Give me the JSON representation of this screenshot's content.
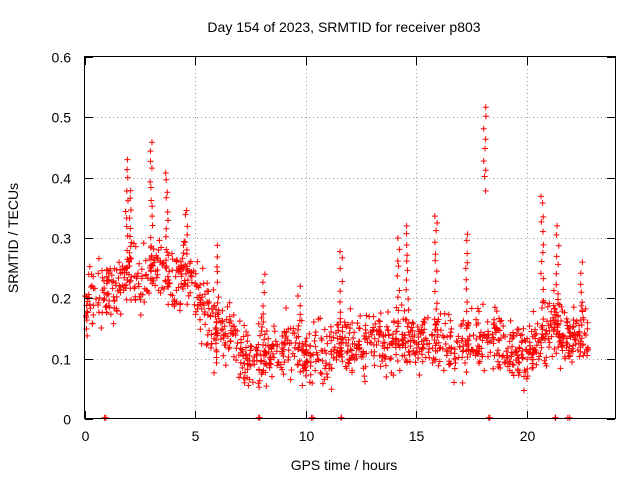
{
  "chart_data": {
    "type": "scatter",
    "title": "Day 154 of 2023, SRMTID for receiver p803",
    "xlabel": "GPS time / hours",
    "ylabel": "SRMTID / TECUs",
    "xlim": [
      0,
      24
    ],
    "ylim": [
      0,
      0.6
    ],
    "x_ticks": [
      0,
      5,
      10,
      15,
      20
    ],
    "x_tick_labels": [
      "0",
      "5",
      "10",
      "15",
      "20"
    ],
    "y_ticks": [
      0,
      0.1,
      0.2,
      0.3,
      0.4,
      0.5,
      0.6
    ],
    "y_tick_labels": [
      "0",
      "0.1",
      "0.2",
      "0.3",
      "0.4",
      "0.5",
      "0.6"
    ],
    "grid": true,
    "marker": "+",
    "color": "#ff0000",
    "trend": [
      [
        0.0,
        0.19
      ],
      [
        0.5,
        0.2
      ],
      [
        1.0,
        0.21
      ],
      [
        1.5,
        0.22
      ],
      [
        2.0,
        0.25
      ],
      [
        2.5,
        0.22
      ],
      [
        3.0,
        0.25
      ],
      [
        3.5,
        0.24
      ],
      [
        4.0,
        0.22
      ],
      [
        4.5,
        0.24
      ],
      [
        5.0,
        0.22
      ],
      [
        5.5,
        0.17
      ],
      [
        6.0,
        0.15
      ],
      [
        6.5,
        0.14
      ],
      [
        7.0,
        0.12
      ],
      [
        7.5,
        0.1
      ],
      [
        8.0,
        0.1
      ],
      [
        8.5,
        0.11
      ],
      [
        9.0,
        0.12
      ],
      [
        9.5,
        0.12
      ],
      [
        10.0,
        0.1
      ],
      [
        10.5,
        0.11
      ],
      [
        11.0,
        0.1
      ],
      [
        11.5,
        0.13
      ],
      [
        12.0,
        0.12
      ],
      [
        12.5,
        0.12
      ],
      [
        13.0,
        0.13
      ],
      [
        13.5,
        0.12
      ],
      [
        14.0,
        0.13
      ],
      [
        14.5,
        0.14
      ],
      [
        15.0,
        0.12
      ],
      [
        15.5,
        0.13
      ],
      [
        16.0,
        0.13
      ],
      [
        16.5,
        0.12
      ],
      [
        17.0,
        0.12
      ],
      [
        17.5,
        0.14
      ],
      [
        18.0,
        0.13
      ],
      [
        18.5,
        0.14
      ],
      [
        19.0,
        0.12
      ],
      [
        19.5,
        0.11
      ],
      [
        20.0,
        0.11
      ],
      [
        20.5,
        0.13
      ],
      [
        21.0,
        0.16
      ],
      [
        21.5,
        0.15
      ],
      [
        22.0,
        0.13
      ],
      [
        22.5,
        0.14
      ],
      [
        22.8,
        0.14
      ]
    ],
    "scatter_amplitude": 0.04,
    "num_random_points": 1300,
    "spikes": [
      {
        "x": 1.9,
        "y_min": 0.2,
        "y_max": 0.43
      },
      {
        "x": 2.05,
        "y_min": 0.2,
        "y_max": 0.38
      },
      {
        "x": 3.0,
        "y_min": 0.22,
        "y_max": 0.46
      },
      {
        "x": 3.7,
        "y_min": 0.22,
        "y_max": 0.41
      },
      {
        "x": 4.6,
        "y_min": 0.22,
        "y_max": 0.35
      },
      {
        "x": 6.0,
        "y_min": 0.14,
        "y_max": 0.29
      },
      {
        "x": 8.1,
        "y_min": 0.08,
        "y_max": 0.24
      },
      {
        "x": 9.7,
        "y_min": 0.08,
        "y_max": 0.22
      },
      {
        "x": 11.6,
        "y_min": 0.1,
        "y_max": 0.28
      },
      {
        "x": 14.2,
        "y_min": 0.1,
        "y_max": 0.3
      },
      {
        "x": 14.6,
        "y_min": 0.1,
        "y_max": 0.32
      },
      {
        "x": 15.9,
        "y_min": 0.1,
        "y_max": 0.34
      },
      {
        "x": 17.3,
        "y_min": 0.1,
        "y_max": 0.31
      },
      {
        "x": 18.1,
        "y_min": 0.38,
        "y_max": 0.52
      },
      {
        "x": 20.7,
        "y_min": 0.12,
        "y_max": 0.37
      },
      {
        "x": 21.4,
        "y_min": 0.12,
        "y_max": 0.32
      },
      {
        "x": 22.5,
        "y_min": 0.12,
        "y_max": 0.26
      }
    ],
    "zero_points": [
      0.9,
      7.9,
      10.3,
      11.6,
      18.3,
      21.3,
      21.9
    ]
  }
}
